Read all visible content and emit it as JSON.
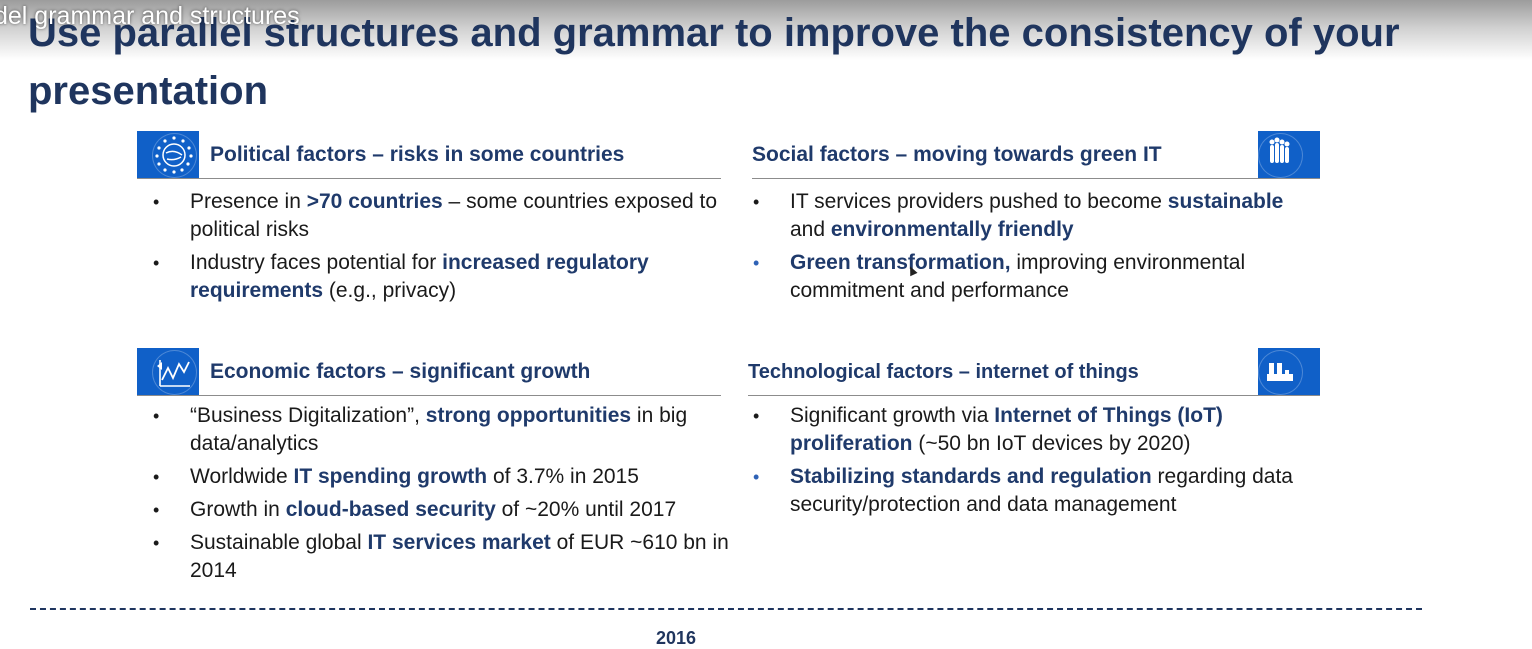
{
  "video_title": "del grammar and structures",
  "slide_title": "Use parallel structures and grammar to improve the consistency of your presentation",
  "quadrants": {
    "political": {
      "title": "Political factors – risks in some countries",
      "icon": "globe-stars-icon",
      "bullets": [
        [
          {
            "t": "Presence in ",
            "b": false
          },
          {
            "t": ">70 countries",
            "b": true
          },
          {
            "t": " – some countries exposed to political risks",
            "b": false
          }
        ],
        [
          {
            "t": "Industry faces potential for ",
            "b": false
          },
          {
            "t": "increased regulatory requirements",
            "b": true
          },
          {
            "t": " (e.g., privacy)",
            "b": false
          }
        ]
      ]
    },
    "social": {
      "title": "Social factors – moving towards green IT",
      "icon": "people-icon",
      "bullets": [
        [
          {
            "t": "IT services providers pushed to become ",
            "b": false
          },
          {
            "t": "sustainable",
            "b": true
          },
          {
            "t": " and ",
            "b": false
          },
          {
            "t": "environmentally friendly",
            "b": true
          }
        ],
        [
          {
            "t": "Green transformation,",
            "b": true
          },
          {
            "t": " improving environmental commitment and performance",
            "b": false
          }
        ]
      ]
    },
    "economic": {
      "title": "Economic factors – significant growth",
      "icon": "growth-chart-icon",
      "bullets": [
        [
          {
            "t": "“Business Digitalization”, ",
            "b": false
          },
          {
            "t": "strong opportunities",
            "b": true
          },
          {
            "t": " in big data/analytics",
            "b": false
          }
        ],
        [
          {
            "t": "Worldwide ",
            "b": false
          },
          {
            "t": "IT spending growth",
            "b": true
          },
          {
            "t": " of 3.7% in 2015",
            "b": false
          }
        ],
        [
          {
            "t": "Growth in ",
            "b": false
          },
          {
            "t": "cloud-based security",
            "b": true
          },
          {
            "t": " of ~20% until 2017",
            "b": false
          }
        ],
        [
          {
            "t": "Sustainable global ",
            "b": false
          },
          {
            "t": "IT services market",
            "b": true
          },
          {
            "t": " of EUR ~610 bn in 2014",
            "b": false
          }
        ]
      ]
    },
    "technological": {
      "title": "Technological factors – internet of things",
      "icon": "factory-icon",
      "bullets": [
        [
          {
            "t": "Significant growth via ",
            "b": false
          },
          {
            "t": "Internet of Things (IoT) proliferation",
            "b": true
          },
          {
            "t": " (~50 bn IoT devices by 2020)",
            "b": false
          }
        ],
        [
          {
            "t": "Stabilizing standards and regulation",
            "b": true
          },
          {
            "t": " regarding data security/protection and data management",
            "b": false
          }
        ]
      ]
    }
  },
  "footer_text": "2016",
  "colors": {
    "title": "#1f355e",
    "accent": "#1060c8",
    "highlight": "#1f3a6b"
  }
}
